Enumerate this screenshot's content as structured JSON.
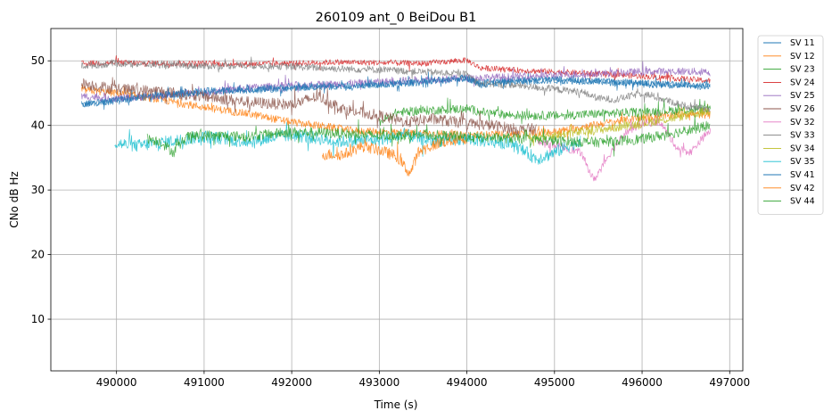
{
  "chart_data": {
    "type": "line",
    "title": "260109 ant_0 BeiDou B1",
    "xlabel": "Time (s)",
    "ylabel": "CNo dB Hz",
    "xlim": [
      489250,
      497150
    ],
    "ylim": [
      2,
      55
    ],
    "xticks": [
      490000,
      491000,
      492000,
      493000,
      494000,
      495000,
      496000,
      497000
    ],
    "yticks": [
      10,
      20,
      30,
      40,
      50
    ],
    "grid": true,
    "legend_position": "upper-right-outside",
    "series": [
      {
        "name": "SV 11",
        "color": "#1f77b4",
        "noise": 0.5,
        "points": [
          [
            489600,
            43.2
          ],
          [
            490000,
            44.0
          ],
          [
            490500,
            44.6
          ],
          [
            491000,
            45.1
          ],
          [
            491500,
            45.4
          ],
          [
            492000,
            45.8
          ],
          [
            492500,
            46.0
          ],
          [
            493000,
            46.3
          ],
          [
            493500,
            46.8
          ],
          [
            494000,
            47.3
          ],
          [
            494150,
            46.6
          ],
          [
            494500,
            47.0
          ],
          [
            495000,
            47.2
          ],
          [
            495500,
            46.9
          ],
          [
            496000,
            46.6
          ],
          [
            496500,
            46.3
          ],
          [
            496780,
            46.1
          ]
        ]
      },
      {
        "name": "SV 12",
        "color": "#ff7f0e",
        "noise": 0.6,
        "points": [
          [
            489600,
            45.5
          ],
          [
            490000,
            45.0
          ],
          [
            490500,
            44.0
          ],
          [
            491000,
            42.8
          ],
          [
            491500,
            41.8
          ],
          [
            492000,
            40.5
          ],
          [
            492400,
            39.8
          ],
          [
            492700,
            39.2
          ],
          [
            493000,
            39.0
          ],
          [
            493500,
            38.8
          ],
          [
            494000,
            38.5
          ],
          [
            494500,
            38.6
          ],
          [
            495000,
            39.0
          ],
          [
            495500,
            40.2
          ],
          [
            496000,
            41.2
          ],
          [
            496500,
            41.8
          ],
          [
            496780,
            41.6
          ]
        ]
      },
      {
        "name": "SV 23",
        "color": "#2ca02c",
        "noise": 0.7,
        "points": [
          [
            493000,
            40.5
          ],
          [
            493200,
            42.0
          ],
          [
            493500,
            42.3
          ],
          [
            494000,
            42.6
          ],
          [
            494200,
            42.0
          ],
          [
            494500,
            41.6
          ],
          [
            495000,
            41.5
          ],
          [
            495500,
            41.8
          ],
          [
            496000,
            42.1
          ],
          [
            496500,
            42.4
          ],
          [
            496780,
            42.6
          ]
        ]
      },
      {
        "name": "SV 24",
        "color": "#d62728",
        "noise": 0.45,
        "points": [
          [
            489600,
            49.6
          ],
          [
            490000,
            49.7
          ],
          [
            490500,
            49.6
          ],
          [
            491000,
            49.6
          ],
          [
            491500,
            49.5
          ],
          [
            492000,
            49.6
          ],
          [
            492500,
            49.8
          ],
          [
            493000,
            49.7
          ],
          [
            493500,
            49.6
          ],
          [
            494000,
            50.1
          ],
          [
            494150,
            48.9
          ],
          [
            494500,
            48.6
          ],
          [
            495000,
            48.3
          ],
          [
            495500,
            48.0
          ],
          [
            496000,
            47.6
          ],
          [
            496500,
            47.2
          ],
          [
            496780,
            46.9
          ]
        ]
      },
      {
        "name": "SV 25",
        "color": "#9467bd",
        "noise": 0.6,
        "points": [
          [
            489600,
            44.5
          ],
          [
            490000,
            44.2
          ],
          [
            490500,
            44.6
          ],
          [
            491000,
            45.2
          ],
          [
            491500,
            45.8
          ],
          [
            492000,
            46.2
          ],
          [
            492500,
            46.4
          ],
          [
            493000,
            46.7
          ],
          [
            493500,
            47.1
          ],
          [
            494000,
            47.3
          ],
          [
            494500,
            47.5
          ],
          [
            495000,
            47.8
          ],
          [
            495500,
            48.0
          ],
          [
            496000,
            48.3
          ],
          [
            496500,
            48.4
          ],
          [
            496780,
            48.2
          ]
        ]
      },
      {
        "name": "SV 26",
        "color": "#8c564b",
        "noise": 0.9,
        "points": [
          [
            489600,
            46.5
          ],
          [
            490000,
            45.6
          ],
          [
            490500,
            45.3
          ],
          [
            491000,
            44.5
          ],
          [
            491500,
            43.6
          ],
          [
            492000,
            43.2
          ],
          [
            492300,
            44.5
          ],
          [
            492600,
            42.5
          ],
          [
            493000,
            41.5
          ],
          [
            493300,
            40.5
          ],
          [
            493600,
            41.0
          ],
          [
            494000,
            40.3
          ],
          [
            494300,
            40.0
          ],
          [
            494600,
            39.3
          ],
          [
            494800,
            39.5
          ]
        ]
      },
      {
        "name": "SV 32",
        "color": "#e377c2",
        "noise": 0.6,
        "points": [
          [
            494800,
            37.3
          ],
          [
            495000,
            37.0
          ],
          [
            495300,
            35.8
          ],
          [
            495450,
            31.5
          ],
          [
            495600,
            35.0
          ],
          [
            495800,
            38.8
          ],
          [
            496000,
            40.3
          ],
          [
            496200,
            40.6
          ],
          [
            496400,
            36.5
          ],
          [
            496550,
            35.8
          ],
          [
            496700,
            38.2
          ],
          [
            496780,
            39.2
          ]
        ]
      },
      {
        "name": "SV 33",
        "color": "#7f7f7f",
        "noise": 0.55,
        "points": [
          [
            489600,
            49.2
          ],
          [
            490000,
            49.6
          ],
          [
            490500,
            49.4
          ],
          [
            491000,
            49.2
          ],
          [
            491500,
            49.3
          ],
          [
            492000,
            49.1
          ],
          [
            492500,
            48.8
          ],
          [
            493000,
            48.6
          ],
          [
            493500,
            48.3
          ],
          [
            494000,
            47.9
          ],
          [
            494150,
            46.4
          ],
          [
            494500,
            46.3
          ],
          [
            495000,
            45.6
          ],
          [
            495300,
            45.2
          ],
          [
            495500,
            44.2
          ],
          [
            495700,
            44.0
          ],
          [
            496000,
            45.0
          ],
          [
            496200,
            44.2
          ],
          [
            496500,
            43.0
          ],
          [
            496780,
            42.4
          ]
        ]
      },
      {
        "name": "SV 34",
        "color": "#bcbd22",
        "noise": 0.7,
        "points": [
          [
            494700,
            38.0
          ],
          [
            495000,
            38.5
          ],
          [
            495500,
            39.3
          ],
          [
            496000,
            40.3
          ],
          [
            496500,
            41.5
          ],
          [
            496780,
            42.3
          ]
        ]
      },
      {
        "name": "SV 35",
        "color": "#17becf",
        "noise": 1.0,
        "points": [
          [
            489980,
            37.3
          ],
          [
            490200,
            36.8
          ],
          [
            490500,
            37.3
          ],
          [
            491000,
            38.3
          ],
          [
            491500,
            37.5
          ],
          [
            492000,
            38.5
          ],
          [
            492300,
            38.0
          ],
          [
            492500,
            37.5
          ],
          [
            493000,
            37.8
          ],
          [
            493300,
            38.5
          ],
          [
            493600,
            37.6
          ],
          [
            494000,
            37.9
          ],
          [
            494500,
            37.2
          ],
          [
            494800,
            34.8
          ],
          [
            495000,
            35.8
          ],
          [
            495300,
            37.7
          ]
        ]
      },
      {
        "name": "SV 41",
        "color": "#1f77b4",
        "noise": 0.55,
        "points": [
          [
            489600,
            43.2
          ],
          [
            490000,
            43.9
          ],
          [
            490500,
            44.7
          ],
          [
            491000,
            45.3
          ],
          [
            491500,
            45.6
          ],
          [
            492000,
            45.9
          ],
          [
            492500,
            46.1
          ],
          [
            493000,
            46.3
          ],
          [
            493500,
            46.7
          ],
          [
            494000,
            47.4
          ],
          [
            494150,
            46.3
          ],
          [
            494500,
            46.7
          ],
          [
            495000,
            47.0
          ],
          [
            495500,
            46.8
          ],
          [
            496000,
            46.4
          ],
          [
            496500,
            46.2
          ],
          [
            496780,
            45.9
          ]
        ]
      },
      {
        "name": "SV 42",
        "color": "#ff7f0e",
        "noise": 0.9,
        "points": [
          [
            492350,
            35.5
          ],
          [
            492600,
            35.5
          ],
          [
            492800,
            36.8
          ],
          [
            493000,
            36.2
          ],
          [
            493200,
            35.2
          ],
          [
            493350,
            32.5
          ],
          [
            493450,
            36.0
          ],
          [
            493700,
            37.4
          ],
          [
            494000,
            38.0
          ]
        ]
      },
      {
        "name": "SV 44",
        "color": "#2ca02c",
        "noise": 0.8,
        "points": [
          [
            490350,
            38.0
          ],
          [
            490500,
            37.5
          ],
          [
            490650,
            35.8
          ],
          [
            490800,
            38.2
          ],
          [
            491000,
            38.5
          ],
          [
            491500,
            38.3
          ],
          [
            492000,
            39.0
          ],
          [
            492500,
            38.8
          ],
          [
            493000,
            38.4
          ],
          [
            493500,
            38.6
          ],
          [
            494000,
            38.2
          ],
          [
            494500,
            38.0
          ],
          [
            495000,
            37.6
          ],
          [
            495500,
            37.4
          ],
          [
            496000,
            37.9
          ],
          [
            496500,
            39.2
          ],
          [
            496780,
            40.0
          ]
        ]
      }
    ]
  }
}
